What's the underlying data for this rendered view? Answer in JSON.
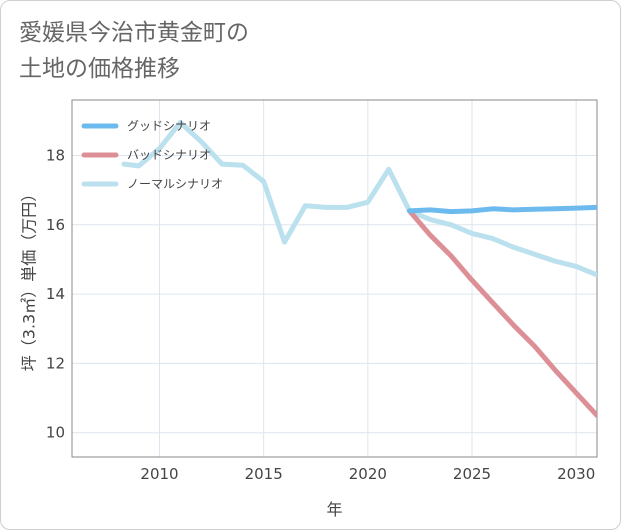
{
  "title_lines": [
    "愛媛県今治市黄金町の",
    "土地の価格推移"
  ],
  "chart_data": {
    "type": "line",
    "title": "愛媛県今治市黄金町の土地の価格推移",
    "xlabel": "年",
    "ylabel": "坪（3.3㎡）単価（万円）",
    "xlim": [
      2005.8,
      2031
    ],
    "ylim": [
      9.3,
      19.6
    ],
    "xticks": [
      2010,
      2015,
      2020,
      2025,
      2030
    ],
    "yticks": [
      10,
      12,
      14,
      16,
      18
    ],
    "grid": true,
    "legend_position": "top-left",
    "series": [
      {
        "name": "グッドシナリオ",
        "color": "#6dbbee",
        "x": [
          2022,
          2023,
          2024,
          2025,
          2026,
          2027,
          2028,
          2029,
          2030,
          2031
        ],
        "y": [
          16.4,
          16.43,
          16.38,
          16.4,
          16.46,
          16.43,
          16.45,
          16.46,
          16.48,
          16.5
        ]
      },
      {
        "name": "バッドシナリオ",
        "color": "#dd8f96",
        "x": [
          2022,
          2023,
          2024,
          2025,
          2026,
          2027,
          2028,
          2029,
          2030,
          2031
        ],
        "y": [
          16.4,
          15.7,
          15.1,
          14.4,
          13.75,
          13.1,
          12.5,
          11.8,
          11.15,
          10.5
        ]
      },
      {
        "name": "ノーマルシナリオ",
        "color": "#bbe0ee",
        "x": [
          2008.3,
          2009,
          2010,
          2011,
          2012,
          2013,
          2014,
          2015,
          2016,
          2017,
          2018,
          2019,
          2020,
          2021,
          2022,
          2023,
          2024,
          2025,
          2026,
          2027,
          2028,
          2029,
          2030,
          2031
        ],
        "y": [
          17.75,
          17.7,
          18.2,
          18.95,
          18.4,
          17.75,
          17.72,
          17.25,
          15.5,
          16.55,
          16.5,
          16.5,
          16.65,
          17.6,
          16.4,
          16.15,
          16.0,
          15.75,
          15.6,
          15.35,
          15.15,
          14.95,
          14.8,
          14.55
        ]
      }
    ]
  }
}
